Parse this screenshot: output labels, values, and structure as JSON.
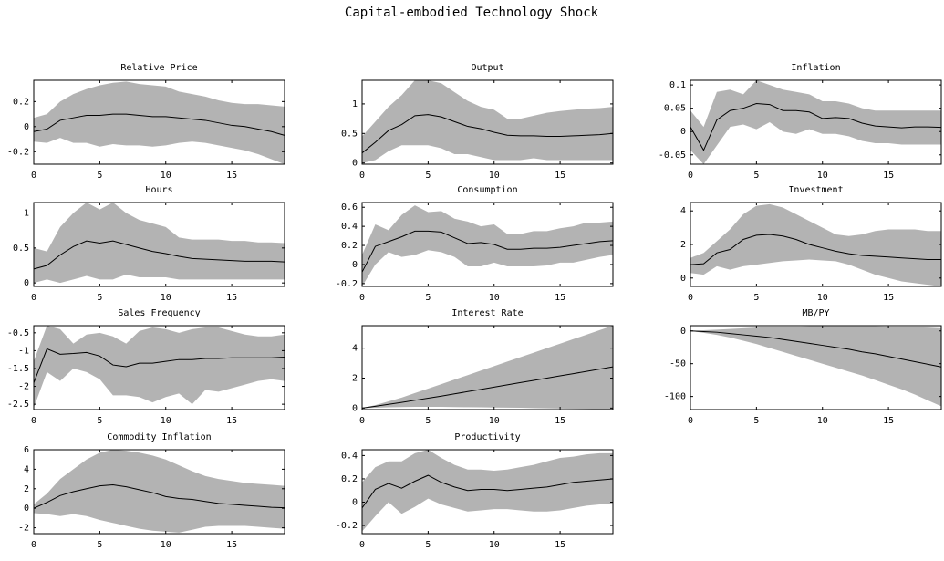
{
  "title": "Capital-embodied Technology Shock",
  "chart_data": [
    {
      "type": "line",
      "title": "Relative Price",
      "x": [
        0,
        1,
        2,
        3,
        4,
        5,
        6,
        7,
        8,
        9,
        10,
        11,
        12,
        13,
        14,
        15,
        16,
        17,
        18,
        19
      ],
      "xlim": [
        0,
        19
      ],
      "xticks": [
        0,
        5,
        10,
        15
      ],
      "ylim": [
        -0.3,
        0.37
      ],
      "yticks": [
        -0.2,
        0,
        0.2
      ],
      "color": "#000000",
      "band_color": "#b3b3b3",
      "values": [
        -0.04,
        -0.02,
        0.05,
        0.07,
        0.09,
        0.09,
        0.1,
        0.1,
        0.09,
        0.08,
        0.08,
        0.07,
        0.06,
        0.05,
        0.03,
        0.01,
        0,
        -0.02,
        -0.04,
        -0.07
      ],
      "upper": [
        0.07,
        0.1,
        0.2,
        0.26,
        0.3,
        0.33,
        0.35,
        0.36,
        0.34,
        0.33,
        0.32,
        0.28,
        0.26,
        0.24,
        0.21,
        0.19,
        0.18,
        0.18,
        0.17,
        0.16
      ],
      "lower": [
        -0.12,
        -0.13,
        -0.09,
        -0.13,
        -0.13,
        -0.16,
        -0.14,
        -0.15,
        -0.15,
        -0.16,
        -0.15,
        -0.13,
        -0.12,
        -0.13,
        -0.15,
        -0.17,
        -0.19,
        -0.22,
        -0.26,
        -0.3
      ]
    },
    {
      "type": "line",
      "title": "Output",
      "x": [
        0,
        1,
        2,
        3,
        4,
        5,
        6,
        7,
        8,
        9,
        10,
        11,
        12,
        13,
        14,
        15,
        16,
        17,
        18,
        19
      ],
      "xlim": [
        0,
        19
      ],
      "xticks": [
        0,
        5,
        10,
        15
      ],
      "ylim": [
        -0.02,
        1.4
      ],
      "yticks": [
        0,
        0.5,
        1
      ],
      "color": "#000000",
      "band_color": "#b3b3b3",
      "values": [
        0.17,
        0.35,
        0.55,
        0.65,
        0.8,
        0.82,
        0.78,
        0.7,
        0.62,
        0.58,
        0.52,
        0.47,
        0.46,
        0.46,
        0.45,
        0.45,
        0.46,
        0.47,
        0.48,
        0.5
      ],
      "upper": [
        0.45,
        0.7,
        0.95,
        1.15,
        1.4,
        1.4,
        1.35,
        1.2,
        1.05,
        0.95,
        0.9,
        0.75,
        0.75,
        0.8,
        0.85,
        0.88,
        0.9,
        0.92,
        0.93,
        0.95
      ],
      "lower": [
        0,
        0.05,
        0.2,
        0.3,
        0.3,
        0.3,
        0.25,
        0.15,
        0.15,
        0.1,
        0.05,
        0.05,
        0.05,
        0.08,
        0.05,
        0.05,
        0.05,
        0.05,
        0.05,
        0.05
      ]
    },
    {
      "type": "line",
      "title": "Inflation",
      "x": [
        0,
        1,
        2,
        3,
        4,
        5,
        6,
        7,
        8,
        9,
        10,
        11,
        12,
        13,
        14,
        15,
        16,
        17,
        18,
        19
      ],
      "xlim": [
        0,
        19
      ],
      "xticks": [
        0,
        5,
        10,
        15
      ],
      "ylim": [
        -0.07,
        0.11
      ],
      "yticks": [
        -0.05,
        0,
        0.05,
        0.1
      ],
      "color": "#000000",
      "band_color": "#b3b3b3",
      "values": [
        0.01,
        -0.04,
        0.025,
        0.045,
        0.05,
        0.06,
        0.058,
        0.045,
        0.045,
        0.042,
        0.028,
        0.03,
        0.028,
        0.018,
        0.012,
        0.01,
        0.008,
        0.01,
        0.01,
        0.009
      ],
      "upper": [
        0.045,
        0.01,
        0.085,
        0.09,
        0.08,
        0.11,
        0.1,
        0.09,
        0.085,
        0.08,
        0.065,
        0.065,
        0.06,
        0.05,
        0.045,
        0.045,
        0.045,
        0.045,
        0.045,
        0.045
      ],
      "lower": [
        -0.04,
        -0.07,
        -0.03,
        0.01,
        0.015,
        0.005,
        0.02,
        0,
        -0.005,
        0.005,
        -0.005,
        -0.005,
        -0.01,
        -0.02,
        -0.025,
        -0.025,
        -0.028,
        -0.028,
        -0.028,
        -0.028
      ]
    },
    {
      "type": "line",
      "title": "Hours",
      "x": [
        0,
        1,
        2,
        3,
        4,
        5,
        6,
        7,
        8,
        9,
        10,
        11,
        12,
        13,
        14,
        15,
        16,
        17,
        18,
        19
      ],
      "xlim": [
        0,
        19
      ],
      "xticks": [
        0,
        5,
        10,
        15
      ],
      "ylim": [
        -0.05,
        1.15
      ],
      "yticks": [
        0,
        0.5,
        1
      ],
      "color": "#000000",
      "band_color": "#b3b3b3",
      "values": [
        0.2,
        0.25,
        0.4,
        0.52,
        0.6,
        0.57,
        0.6,
        0.55,
        0.5,
        0.45,
        0.42,
        0.38,
        0.35,
        0.34,
        0.33,
        0.32,
        0.31,
        0.31,
        0.31,
        0.3
      ],
      "upper": [
        0.5,
        0.45,
        0.8,
        1.0,
        1.15,
        1.05,
        1.15,
        1.0,
        0.9,
        0.85,
        0.8,
        0.65,
        0.62,
        0.62,
        0.62,
        0.6,
        0.6,
        0.58,
        0.58,
        0.57
      ],
      "lower": [
        0,
        0.05,
        0,
        0.05,
        0.1,
        0.05,
        0.05,
        0.12,
        0.08,
        0.08,
        0.08,
        0.05,
        0.05,
        0.05,
        0.05,
        0.05,
        0.05,
        0.05,
        0.05,
        0.05
      ]
    },
    {
      "type": "line",
      "title": "Consumption",
      "x": [
        0,
        1,
        2,
        3,
        4,
        5,
        6,
        7,
        8,
        9,
        10,
        11,
        12,
        13,
        14,
        15,
        16,
        17,
        18,
        19
      ],
      "xlim": [
        0,
        19
      ],
      "xticks": [
        0,
        5,
        10,
        15
      ],
      "ylim": [
        -0.23,
        0.65
      ],
      "yticks": [
        -0.2,
        0,
        0.2,
        0.4,
        0.6
      ],
      "color": "#000000",
      "band_color": "#b3b3b3",
      "values": [
        -0.08,
        0.19,
        0.24,
        0.29,
        0.35,
        0.35,
        0.34,
        0.28,
        0.22,
        0.23,
        0.21,
        0.16,
        0.16,
        0.17,
        0.17,
        0.18,
        0.2,
        0.22,
        0.24,
        0.25
      ],
      "upper": [
        0.1,
        0.42,
        0.36,
        0.52,
        0.62,
        0.55,
        0.56,
        0.48,
        0.45,
        0.4,
        0.42,
        0.32,
        0.32,
        0.35,
        0.35,
        0.38,
        0.4,
        0.44,
        0.44,
        0.45
      ],
      "lower": [
        -0.23,
        0,
        0.13,
        0.08,
        0.1,
        0.15,
        0.13,
        0.08,
        -0.02,
        -0.02,
        0.02,
        -0.02,
        -0.02,
        -0.02,
        -0.01,
        0.02,
        0.02,
        0.05,
        0.08,
        0.1
      ]
    },
    {
      "type": "line",
      "title": "Investment",
      "x": [
        0,
        1,
        2,
        3,
        4,
        5,
        6,
        7,
        8,
        9,
        10,
        11,
        12,
        13,
        14,
        15,
        16,
        17,
        18,
        19
      ],
      "xlim": [
        0,
        19
      ],
      "xticks": [
        0,
        5,
        10,
        15
      ],
      "ylim": [
        -0.5,
        4.5
      ],
      "yticks": [
        0,
        2,
        4
      ],
      "color": "#000000",
      "band_color": "#b3b3b3",
      "values": [
        0.8,
        0.85,
        1.5,
        1.7,
        2.3,
        2.55,
        2.6,
        2.5,
        2.3,
        2.0,
        1.8,
        1.6,
        1.45,
        1.35,
        1.3,
        1.25,
        1.2,
        1.15,
        1.1,
        1.1
      ],
      "upper": [
        1.2,
        1.5,
        2.2,
        2.9,
        3.8,
        4.3,
        4.4,
        4.2,
        3.8,
        3.4,
        3.0,
        2.6,
        2.5,
        2.6,
        2.8,
        2.9,
        2.9,
        2.9,
        2.8,
        2.8
      ],
      "lower": [
        0.3,
        0.2,
        0.7,
        0.5,
        0.7,
        0.8,
        0.9,
        1.0,
        1.05,
        1.1,
        1.05,
        1.0,
        0.8,
        0.5,
        0.2,
        0,
        -0.2,
        -0.3,
        -0.4,
        -0.5
      ]
    },
    {
      "type": "line",
      "title": "Sales Frequency",
      "x": [
        0,
        1,
        2,
        3,
        4,
        5,
        6,
        7,
        8,
        9,
        10,
        11,
        12,
        13,
        14,
        15,
        16,
        17,
        18,
        19
      ],
      "xlim": [
        0,
        19
      ],
      "xticks": [
        0,
        5,
        10,
        15
      ],
      "ylim": [
        -2.65,
        -0.3
      ],
      "yticks": [
        -2.5,
        -2,
        -1.5,
        -1,
        -0.5
      ],
      "color": "#000000",
      "band_color": "#b3b3b3",
      "values": [
        -1.9,
        -0.95,
        -1.1,
        -1.08,
        -1.05,
        -1.15,
        -1.4,
        -1.45,
        -1.35,
        -1.35,
        -1.3,
        -1.25,
        -1.25,
        -1.22,
        -1.22,
        -1.2,
        -1.2,
        -1.2,
        -1.2,
        -1.18
      ],
      "upper": [
        -1.3,
        -0.3,
        -0.4,
        -0.8,
        -0.55,
        -0.5,
        -0.6,
        -0.8,
        -0.45,
        -0.35,
        -0.4,
        -0.5,
        -0.4,
        -0.35,
        -0.35,
        -0.45,
        -0.55,
        -0.6,
        -0.6,
        -0.55
      ],
      "lower": [
        -2.6,
        -1.6,
        -1.85,
        -1.5,
        -1.6,
        -1.8,
        -2.25,
        -2.25,
        -2.3,
        -2.45,
        -2.3,
        -2.2,
        -2.5,
        -2.1,
        -2.15,
        -2.05,
        -1.95,
        -1.85,
        -1.8,
        -1.85
      ]
    },
    {
      "type": "line",
      "title": "Interest Rate",
      "x": [
        0,
        1,
        2,
        3,
        4,
        5,
        6,
        7,
        8,
        9,
        10,
        11,
        12,
        13,
        14,
        15,
        16,
        17,
        18,
        19
      ],
      "xlim": [
        0,
        19
      ],
      "xticks": [
        0,
        5,
        10,
        15
      ],
      "ylim": [
        -0.1,
        5.5
      ],
      "yticks": [
        0,
        2,
        4
      ],
      "color": "#000000",
      "band_color": "#b3b3b3",
      "values": [
        0,
        0.12,
        0.25,
        0.38,
        0.52,
        0.66,
        0.8,
        0.95,
        1.1,
        1.25,
        1.4,
        1.55,
        1.7,
        1.85,
        2.0,
        2.15,
        2.3,
        2.45,
        2.6,
        2.75
      ],
      "upper": [
        0,
        0.2,
        0.45,
        0.7,
        1.0,
        1.3,
        1.6,
        1.9,
        2.2,
        2.5,
        2.8,
        3.1,
        3.4,
        3.7,
        4.0,
        4.3,
        4.6,
        4.9,
        5.2,
        5.5
      ],
      "lower": [
        0,
        0.02,
        0.05,
        0.07,
        0.08,
        0.08,
        0.08,
        0.07,
        0.06,
        0.05,
        0.04,
        0.03,
        0.02,
        0,
        -0.02,
        -0.03,
        -0.05,
        -0.06,
        -0.08,
        -0.1
      ]
    },
    {
      "type": "line",
      "title": "MB/PY",
      "x": [
        0,
        1,
        2,
        3,
        4,
        5,
        6,
        7,
        8,
        9,
        10,
        11,
        12,
        13,
        14,
        15,
        16,
        17,
        18,
        19
      ],
      "xlim": [
        0,
        19
      ],
      "xticks": [
        0,
        5,
        10,
        15
      ],
      "ylim": [
        -120,
        8
      ],
      "yticks": [
        -100,
        -50,
        0
      ],
      "color": "#000000",
      "band_color": "#b3b3b3",
      "values": [
        0,
        -1,
        -2,
        -4,
        -6,
        -8,
        -10,
        -13,
        -16,
        -19,
        -22,
        -25,
        -28,
        -32,
        -35,
        -39,
        -43,
        -47,
        -51,
        -55
      ],
      "upper": [
        0,
        1,
        2,
        3,
        4,
        5,
        5.5,
        6,
        6.5,
        7,
        7,
        7,
        7,
        7,
        7,
        6.5,
        6,
        5.5,
        5,
        4
      ],
      "lower": [
        0,
        -3,
        -6,
        -10,
        -15,
        -20,
        -26,
        -32,
        -38,
        -44,
        -50,
        -56,
        -62,
        -68,
        -75,
        -82,
        -89,
        -97,
        -106,
        -115
      ]
    },
    {
      "type": "line",
      "title": "Commodity Inflation",
      "x": [
        0,
        1,
        2,
        3,
        4,
        5,
        6,
        7,
        8,
        9,
        10,
        11,
        12,
        13,
        14,
        15,
        16,
        17,
        18,
        19
      ],
      "xlim": [
        0,
        19
      ],
      "xticks": [
        0,
        5,
        10,
        15
      ],
      "ylim": [
        -2.6,
        6
      ],
      "yticks": [
        -2,
        0,
        2,
        4,
        6
      ],
      "color": "#000000",
      "band_color": "#b3b3b3",
      "values": [
        0,
        0.6,
        1.3,
        1.7,
        2.0,
        2.3,
        2.4,
        2.2,
        1.9,
        1.6,
        1.2,
        1.0,
        0.9,
        0.7,
        0.5,
        0.4,
        0.3,
        0.2,
        0.1,
        0.05
      ],
      "upper": [
        0.4,
        1.5,
        3.0,
        4.0,
        5.0,
        5.7,
        6.0,
        5.9,
        5.7,
        5.4,
        5.0,
        4.4,
        3.8,
        3.3,
        3.0,
        2.8,
        2.6,
        2.5,
        2.4,
        2.3
      ],
      "lower": [
        -0.5,
        -0.6,
        -0.8,
        -0.6,
        -0.8,
        -1.2,
        -1.5,
        -1.8,
        -2.1,
        -2.3,
        -2.4,
        -2.5,
        -2.2,
        -1.9,
        -1.8,
        -1.8,
        -1.8,
        -1.9,
        -2.0,
        -2.1
      ]
    },
    {
      "type": "line",
      "title": "Productivity",
      "x": [
        0,
        1,
        2,
        3,
        4,
        5,
        6,
        7,
        8,
        9,
        10,
        11,
        12,
        13,
        14,
        15,
        16,
        17,
        18,
        19
      ],
      "xlim": [
        0,
        19
      ],
      "xticks": [
        0,
        5,
        10,
        15
      ],
      "ylim": [
        -0.27,
        0.45
      ],
      "yticks": [
        -0.2,
        0,
        0.2,
        0.4
      ],
      "color": "#000000",
      "band_color": "#b3b3b3",
      "values": [
        -0.05,
        0.11,
        0.16,
        0.12,
        0.18,
        0.23,
        0.17,
        0.13,
        0.1,
        0.11,
        0.11,
        0.1,
        0.11,
        0.12,
        0.13,
        0.15,
        0.17,
        0.18,
        0.19,
        0.2
      ],
      "upper": [
        0.17,
        0.3,
        0.35,
        0.35,
        0.42,
        0.45,
        0.38,
        0.32,
        0.28,
        0.28,
        0.27,
        0.28,
        0.3,
        0.32,
        0.35,
        0.38,
        0.39,
        0.41,
        0.42,
        0.42
      ],
      "lower": [
        -0.25,
        -0.12,
        0,
        -0.1,
        -0.04,
        0.03,
        -0.02,
        -0.05,
        -0.08,
        -0.07,
        -0.06,
        -0.06,
        -0.07,
        -0.08,
        -0.08,
        -0.07,
        -0.05,
        -0.03,
        -0.02,
        -0.01
      ]
    }
  ]
}
